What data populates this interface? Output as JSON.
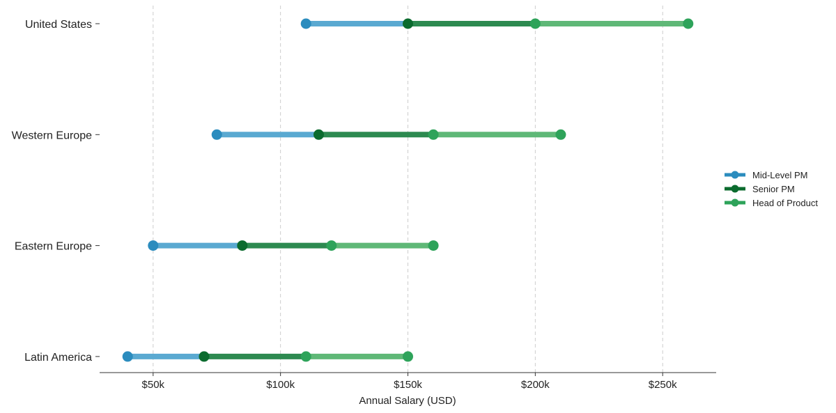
{
  "chart_data": {
    "type": "dumbbell",
    "categories": [
      "United States",
      "Western Europe",
      "Eastern Europe",
      "Latin America"
    ],
    "series": [
      {
        "name": "Mid-Level PM",
        "color": "#2b8cbe",
        "segment_color": "#5aa9d1",
        "values": [
          110000,
          75000,
          50000,
          40000
        ]
      },
      {
        "name": "Senior PM",
        "color": "#0b6b2e",
        "segment_color": "#2d8a50",
        "values": [
          150000,
          115000,
          85000,
          70000
        ]
      },
      {
        "name": "Head of Product",
        "color": "#2ea35a",
        "segment_color": "#5fb877",
        "values": [
          200000,
          160000,
          120000,
          110000
        ]
      },
      {
        "name": "Head of Product (upper)",
        "color": "#2ea35a",
        "segment_color": "#5fb877",
        "values": [
          260000,
          210000,
          160000,
          150000
        ],
        "legend": false
      }
    ],
    "segments": [
      {
        "from_series": 0,
        "to_series": 1,
        "color": "#5aa9d1"
      },
      {
        "from_series": 1,
        "to_series": 2,
        "color": "#2d8a50"
      },
      {
        "from_series": 2,
        "to_series": 3,
        "color": "#5fb877"
      }
    ],
    "xlabel": "Annual Salary (USD)",
    "xlim": [
      29000,
      271000
    ],
    "xticks": [
      50000,
      100000,
      150000,
      200000,
      250000
    ],
    "xtick_labels": [
      "$50k",
      "$100k",
      "$150k",
      "$200k",
      "$250k"
    ],
    "grid": "vertical-dashed",
    "legend_position": "right"
  },
  "legend": {
    "items": [
      {
        "label": "Mid-Level PM",
        "color": "#2b8cbe"
      },
      {
        "label": "Senior PM",
        "color": "#0b6b2e"
      },
      {
        "label": "Head of Product",
        "color": "#2ea35a"
      }
    ]
  }
}
